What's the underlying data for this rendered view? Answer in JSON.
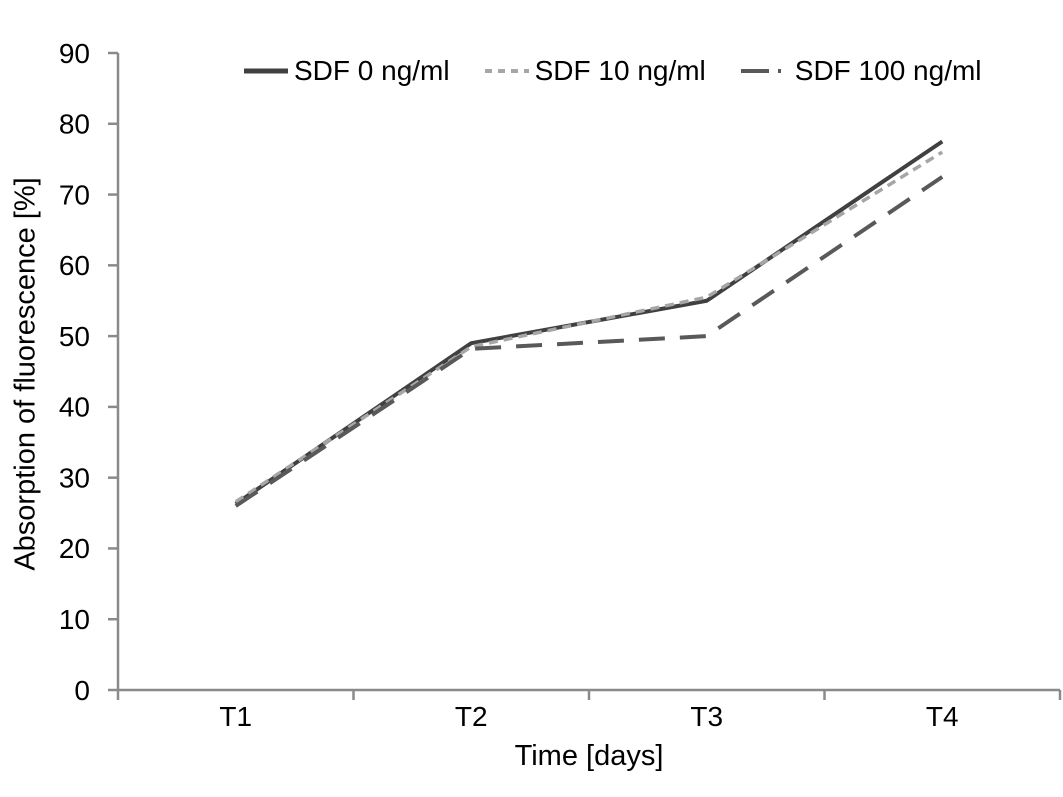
{
  "page": {
    "background": "#ffffff"
  },
  "chart_data": {
    "type": "line",
    "title": "",
    "categories": [
      "T1",
      "T2",
      "T3",
      "T4"
    ],
    "series": [
      {
        "name": "SDF 0 ng/ml",
        "values": [
          26.3,
          49,
          55,
          77.5
        ],
        "color": "#404040",
        "dash": "none",
        "legend_dash": "none",
        "width": 4
      },
      {
        "name": "SDF 10 ng/ml",
        "values": [
          26.6,
          48.5,
          55.5,
          76
        ],
        "color": "#a6a6a6",
        "dash": "9 6",
        "legend_dash": "7 6",
        "width": 3.5
      },
      {
        "name": "SDF 100 ng/ml",
        "values": [
          26,
          48.2,
          50,
          72.5
        ],
        "color": "#595959",
        "dash": "26 15",
        "legend_dash": "28 9 3 9",
        "width": 4
      }
    ],
    "xlabel": "Time [days]",
    "ylabel": "Absorption of fluorescence [%]",
    "ylim": [
      0,
      90
    ],
    "yticks": [
      0,
      10,
      20,
      30,
      40,
      50,
      60,
      70,
      80,
      90
    ],
    "legend_position": "top",
    "grid": false,
    "axis_color": "#8a8a8a",
    "text_color": "#000000"
  }
}
